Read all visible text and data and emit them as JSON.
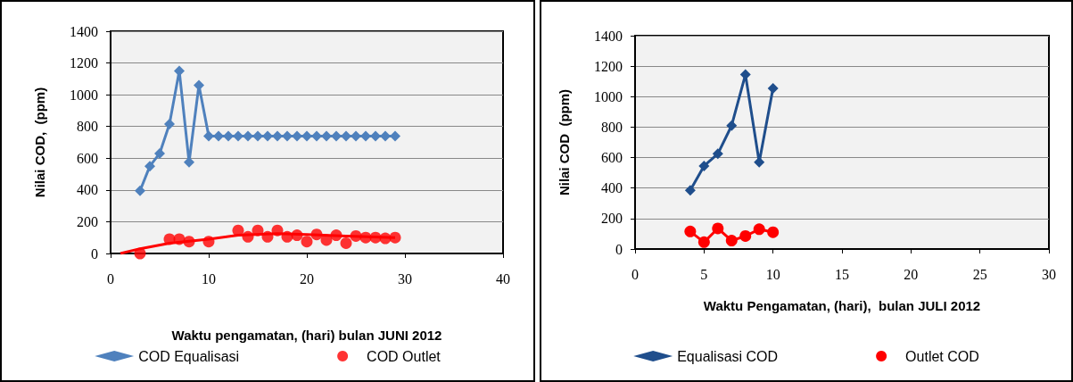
{
  "chart_data": [
    {
      "type": "line",
      "xlabel": "Waktu pengamatan, (hari) bulan JUNI 2012",
      "ylabel": "Nilai COD,  (ppm)",
      "xlim": [
        0,
        40
      ],
      "xticks": [
        0,
        10,
        20,
        30,
        40
      ],
      "ylim": [
        0,
        1400
      ],
      "yticks": [
        0,
        200,
        400,
        600,
        800,
        1000,
        1200,
        1400
      ],
      "grid": "y",
      "legend": "bottom",
      "series": [
        {
          "name": "COD Equalisasi",
          "color": "#4f81bd",
          "marker": "diamond",
          "x": [
            3,
            4,
            5,
            6,
            7,
            8,
            9,
            10,
            11,
            12,
            13,
            14,
            15,
            16,
            17,
            18,
            19,
            20,
            21,
            22,
            23,
            24,
            25,
            26,
            27,
            28,
            29
          ],
          "values": [
            395,
            550,
            630,
            815,
            1150,
            575,
            1060,
            740,
            740,
            740,
            740,
            740,
            740,
            740,
            740,
            740,
            740,
            740,
            740,
            740,
            740,
            740,
            740,
            740,
            740,
            740,
            740
          ]
        },
        {
          "name": "COD Outlet",
          "type": "scatter",
          "color": "#ff0000",
          "marker": "circle",
          "x": [
            3,
            6,
            7,
            8,
            10,
            13,
            14,
            15,
            16,
            17,
            18,
            19,
            20,
            21,
            22,
            23,
            24,
            25,
            26,
            27,
            28,
            29
          ],
          "values": [
            0,
            90,
            90,
            75,
            75,
            145,
            105,
            145,
            105,
            145,
            105,
            115,
            75,
            120,
            85,
            115,
            65,
            110,
            100,
            100,
            95,
            100
          ]
        },
        {
          "type": "line",
          "color": "#ff0000",
          "marker": "none",
          "x": [
            1,
            3,
            6,
            10,
            13,
            17,
            20,
            24,
            29
          ],
          "values": [
            0,
            30,
            65,
            90,
            115,
            125,
            120,
            110,
            100
          ]
        }
      ]
    },
    {
      "type": "line",
      "xlabel": "Waktu Pengamatan, (hari),  bulan JULI 2012",
      "ylabel": "Nilai COD  (ppm)",
      "xlim": [
        0,
        30
      ],
      "xticks": [
        0,
        5,
        10,
        15,
        20,
        25,
        30
      ],
      "ylim": [
        0,
        1400
      ],
      "yticks": [
        0,
        200,
        400,
        600,
        800,
        1000,
        1200,
        1400
      ],
      "grid": "y",
      "legend": "bottom",
      "series": [
        {
          "name": "Equalisasi COD",
          "color": "#1f4e8c",
          "marker": "diamond",
          "x": [
            4,
            5,
            6,
            7,
            8,
            9,
            10
          ],
          "values": [
            385,
            545,
            625,
            810,
            1145,
            570,
            1055
          ]
        },
        {
          "name": "Outlet COD",
          "color": "#ff0000",
          "marker": "circle",
          "x": [
            4,
            5,
            6,
            7,
            8,
            9,
            10
          ],
          "values": [
            115,
            45,
            135,
            55,
            85,
            130,
            110
          ]
        }
      ]
    }
  ]
}
